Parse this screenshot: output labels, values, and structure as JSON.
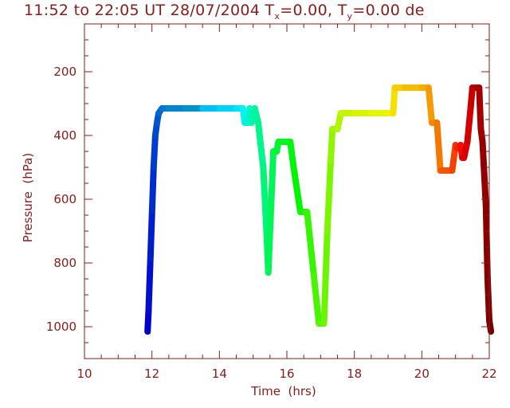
{
  "title": {
    "prefix": "11:52 to 22:05 UT 28/07/2004   T",
    "tx_sub": "x",
    "tx_val": "=0.00, T",
    "ty_sub": "y",
    "ty_val": "=0.00 de"
  },
  "chart_data": {
    "type": "line",
    "title": "11:52 to 22:05 UT 28/07/2004   Tx=0.00, Ty=0.00 de",
    "xlabel": "Time  (hrs)",
    "ylabel": "Pressure  (hPa)",
    "xlim": [
      10,
      22
    ],
    "ylim": [
      1100,
      50
    ],
    "y_reversed": true,
    "xticks": [
      10,
      12,
      14,
      16,
      18,
      20,
      22
    ],
    "yticks": [
      200,
      400,
      600,
      800,
      1000
    ],
    "axis_color": "#8b1a1a",
    "series": [
      {
        "color_scale": "rainbow (blue to dark red over time)",
        "x": [
          11.87,
          11.9,
          11.95,
          12.0,
          12.05,
          12.1,
          12.15,
          12.2,
          12.3,
          12.5,
          13.0,
          13.5,
          14.0,
          14.5,
          14.7,
          14.75,
          14.85,
          14.9,
          14.95,
          15.05,
          15.15,
          15.3,
          15.4,
          15.45,
          15.6,
          15.7,
          15.75,
          16.1,
          16.2,
          16.4,
          16.55,
          16.6,
          16.8,
          16.95,
          17.1,
          17.2,
          17.3,
          17.35,
          17.5,
          17.6,
          18.0,
          18.5,
          19.0,
          19.15,
          19.2,
          19.5,
          20.0,
          20.2,
          20.3,
          20.45,
          20.55,
          20.6,
          20.9,
          21.0,
          21.05,
          21.15,
          21.2,
          21.25,
          21.35,
          21.45,
          21.5,
          21.55,
          21.65,
          21.7,
          21.75,
          21.8,
          21.9,
          21.95,
          22.0,
          22.05
        ],
        "y": [
          1015,
          950,
          800,
          650,
          500,
          400,
          360,
          330,
          315,
          315,
          315,
          315,
          315,
          315,
          315,
          360,
          360,
          315,
          360,
          315,
          360,
          500,
          710,
          830,
          450,
          450,
          420,
          420,
          500,
          640,
          640,
          640,
          840,
          990,
          990,
          700,
          480,
          380,
          380,
          330,
          330,
          330,
          330,
          330,
          250,
          250,
          250,
          250,
          360,
          360,
          510,
          510,
          510,
          430,
          440,
          430,
          470,
          470,
          420,
          310,
          250,
          250,
          250,
          250,
          380,
          420,
          620,
          850,
          980,
          1015
        ]
      }
    ]
  }
}
